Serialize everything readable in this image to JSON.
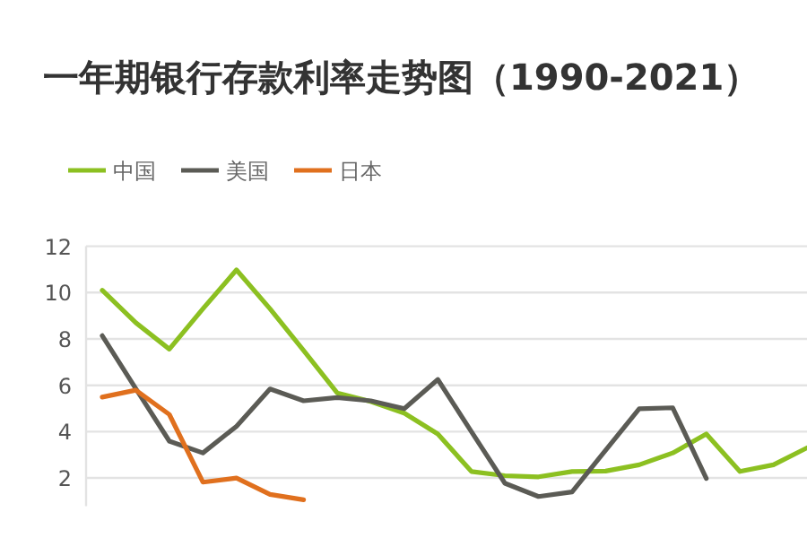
{
  "chart_data": {
    "type": "line",
    "title": "一年期银行存款利率走势图（1990-2021）",
    "categories": [
      null,
      null,
      null,
      null,
      null,
      null,
      null,
      null,
      null,
      null,
      null,
      null,
      null,
      null,
      null,
      null,
      null,
      null,
      null,
      null,
      null,
      null
    ],
    "series": [
      {
        "name": "中国",
        "color": "#8cc021",
        "values": [
          10.1,
          8.7,
          7.56,
          9.3,
          10.98,
          9.3,
          7.5,
          5.67,
          5.3,
          4.8,
          3.9,
          2.28,
          2.1,
          2.05,
          2.28,
          2.3,
          2.57,
          3.08,
          3.9,
          2.28,
          2.57,
          3.3
        ]
      },
      {
        "name": "美国",
        "color": "#5b5b55",
        "values": [
          8.14,
          5.86,
          3.59,
          3.08,
          4.23,
          5.84,
          5.33,
          5.47,
          5.33,
          4.99,
          6.25,
          4.0,
          1.77,
          1.2,
          1.4,
          3.2,
          4.99,
          5.03,
          1.98,
          null,
          null,
          null
        ]
      },
      {
        "name": "日本",
        "color": "#e0701e",
        "values": [
          5.49,
          5.79,
          4.74,
          1.82,
          2.0,
          1.29,
          1.06,
          null,
          null,
          null,
          null,
          null,
          null,
          null,
          null,
          null,
          null,
          null,
          null,
          null,
          null,
          null
        ]
      }
    ],
    "ylim": [
      0.78,
      12
    ],
    "yticks": [
      2,
      4,
      6,
      8,
      10,
      12
    ],
    "grid": "y",
    "legend": "top left",
    "tick_labels": "y",
    "marker": "none",
    "line_style": "solid"
  }
}
